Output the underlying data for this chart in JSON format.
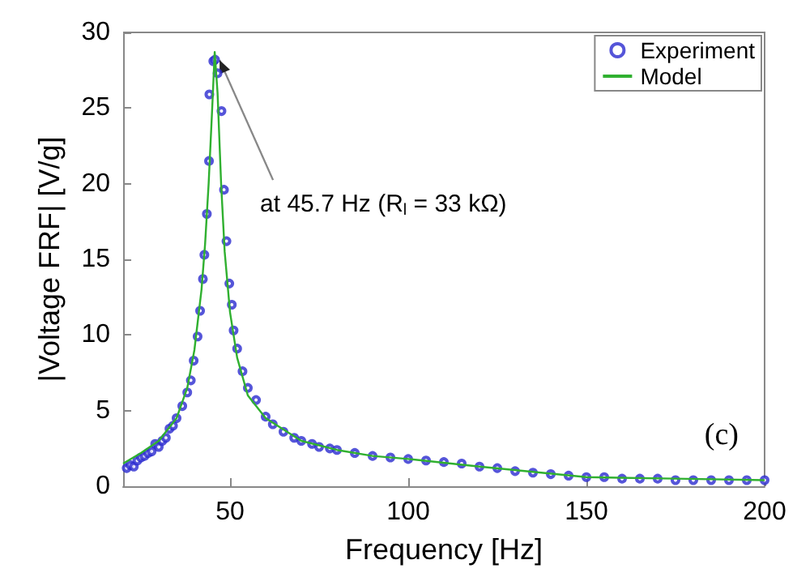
{
  "chart_data": {
    "type": "scatter",
    "xlabel": "Frequency [Hz]",
    "ylabel": "|Voltage FRF| [V/g]",
    "xlim": [
      20,
      200
    ],
    "xticks": [
      50,
      100,
      150,
      200
    ],
    "ylim": [
      0,
      30
    ],
    "yticks": [
      0,
      5,
      10,
      15,
      20,
      25,
      30
    ],
    "grid": false,
    "legend": "top right",
    "marker": "circle",
    "annotations": [
      {
        "text": "at 45.7 Hz (R$_{l}$ = 33 kΩ)",
        "x": 45.7,
        "y": 28.6
      },
      "(c)"
    ],
    "series": [
      {
        "name": "Experiment",
        "color": "#2a2ad0",
        "x": [
          21,
          22,
          23,
          24,
          25,
          26,
          27,
          28,
          29,
          30,
          31,
          32,
          33,
          34,
          35,
          36.6,
          38,
          39,
          39.8,
          40.9,
          41.6,
          42.4,
          42.8,
          43.5,
          44.1,
          44.2,
          45.3,
          45.8,
          46.5,
          47.6,
          48.3,
          49,
          49.8,
          50.5,
          51,
          52,
          53.5,
          55,
          57.3,
          60,
          62,
          65,
          68,
          70,
          73,
          75,
          78,
          80,
          85,
          90,
          95,
          100,
          105,
          110,
          115,
          120,
          125,
          130,
          135,
          140,
          145,
          150,
          155,
          160,
          165,
          170,
          175,
          180,
          185,
          190,
          195,
          200
        ],
        "values": [
          1.2,
          1.4,
          1.3,
          1.7,
          1.9,
          2.0,
          2.2,
          2.3,
          2.8,
          2.6,
          3.0,
          3.2,
          3.8,
          4.0,
          4.5,
          5.3,
          6.2,
          7.0,
          8.3,
          9.9,
          11.6,
          13.7,
          15.3,
          18.0,
          21.5,
          25.9,
          28.1,
          28.2,
          27.3,
          24.8,
          19.6,
          16.2,
          13.4,
          12.0,
          10.3,
          9.1,
          7.6,
          6.5,
          5.7,
          4.6,
          4.1,
          3.6,
          3.2,
          3.0,
          2.8,
          2.6,
          2.5,
          2.4,
          2.2,
          2.0,
          1.9,
          1.8,
          1.7,
          1.6,
          1.5,
          1.3,
          1.2,
          1.0,
          0.9,
          0.8,
          0.7,
          0.6,
          0.6,
          0.5,
          0.5,
          0.5,
          0.4,
          0.4,
          0.4,
          0.4,
          0.4,
          0.4
        ]
      },
      {
        "name": "Model",
        "type": "line",
        "color": "#30b030",
        "marker": "none",
        "line_style": "solid",
        "x": [
          20,
          25,
          30,
          35,
          38,
          40,
          42,
          43,
          44,
          45,
          45.7,
          46.5,
          47.5,
          48.5,
          50,
          52,
          55,
          60,
          70,
          80,
          90,
          100,
          120,
          150,
          175,
          200
        ],
        "values": [
          1.5,
          2.2,
          3.0,
          4.5,
          6.5,
          9,
          13,
          16,
          20,
          25,
          28.7,
          26,
          20,
          15.5,
          11.5,
          8.5,
          6,
          4.5,
          3.0,
          2.4,
          2.0,
          1.8,
          1.3,
          0.6,
          0.5,
          0.4
        ]
      }
    ]
  }
}
